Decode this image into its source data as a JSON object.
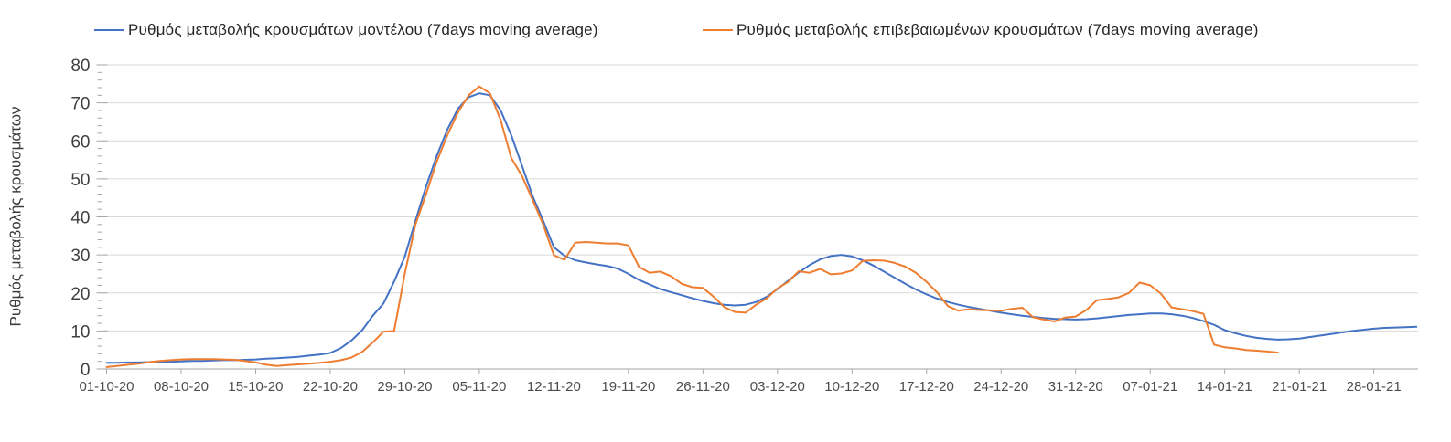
{
  "theme": {
    "background": "#ffffff",
    "gridline_color": "#d9d9d9",
    "axis_color": "#a6a6a6",
    "y_tick_text_color": "#404040",
    "x_tick_text_color": "#4d4d4d",
    "legend_text_color": "#262626"
  },
  "chart_data": {
    "type": "line",
    "title": "",
    "xlabel": "",
    "ylabel": "Ρυθμός μεταβολής κρουσμάτων",
    "ylim": [
      0,
      80
    ],
    "y_ticks": [
      0,
      10,
      20,
      30,
      40,
      50,
      60,
      70,
      80
    ],
    "y_minor_tick_step": 2,
    "grid": "horizontal-major",
    "legend_position": "top",
    "x_unit": "daily points, day 0 = 01-10-20",
    "x_tick_days": [
      0,
      7,
      14,
      21,
      28,
      35,
      42,
      49,
      56,
      63,
      70,
      77,
      84,
      91,
      98,
      105,
      112,
      119
    ],
    "x_tick_labels": [
      "01-10-20",
      "08-10-20",
      "15-10-20",
      "22-10-20",
      "29-10-20",
      "05-11-20",
      "12-11-20",
      "19-11-20",
      "26-11-20",
      "03-12-20",
      "10-12-20",
      "17-12-20",
      "24-12-20",
      "31-12-20",
      "07-01-21",
      "14-01-21",
      "21-01-21",
      "28-01-21"
    ],
    "series": [
      {
        "name": "Ρυθμός μεταβολής κρουσμάτων μοντέλου (7days moving average)",
        "color": "#4472C4",
        "start_day": 0,
        "values": [
          1.6,
          1.6,
          1.7,
          1.7,
          1.8,
          1.9,
          1.9,
          2.0,
          2.1,
          2.1,
          2.2,
          2.3,
          2.3,
          2.4,
          2.5,
          2.7,
          2.8,
          3.0,
          3.2,
          3.5,
          3.8,
          4.2,
          5.5,
          7.5,
          10.2,
          14.0,
          17.2,
          23.0,
          29.5,
          39.0,
          48.0,
          56.0,
          63.0,
          68.5,
          71.5,
          72.5,
          72.0,
          68.0,
          61.5,
          53.5,
          45.5,
          39.0,
          32.0,
          29.8,
          28.6,
          28.0,
          27.5,
          27.1,
          26.4,
          25.0,
          23.4,
          22.2,
          21.0,
          20.2,
          19.4,
          18.6,
          17.9,
          17.3,
          16.9,
          16.7,
          16.9,
          17.6,
          19.0,
          21.0,
          23.2,
          25.4,
          27.3,
          28.8,
          29.7,
          30.0,
          29.6,
          28.6,
          27.2,
          25.6,
          24.0,
          22.4,
          20.9,
          19.6,
          18.5,
          17.6,
          16.9,
          16.3,
          15.8,
          15.3,
          14.8,
          14.4,
          14.0,
          13.7,
          13.4,
          13.2,
          13.1,
          13.0,
          13.1,
          13.3,
          13.6,
          13.9,
          14.2,
          14.4,
          14.6,
          14.6,
          14.4,
          14.0,
          13.4,
          12.6,
          11.6,
          10.2,
          9.4,
          8.7,
          8.2,
          7.9,
          7.7,
          7.8,
          8.0,
          8.4,
          8.8,
          9.2,
          9.6,
          10.0,
          10.3,
          10.6,
          10.8,
          10.9,
          11.0,
          11.1
        ]
      },
      {
        "name": "Ρυθμός μεταβολής επιβεβαιωμένων κρουσμάτων (7days moving average)",
        "color": "#ED7D31",
        "start_day": 0,
        "values": [
          0.5,
          0.8,
          1.1,
          1.4,
          1.8,
          2.1,
          2.3,
          2.5,
          2.6,
          2.6,
          2.6,
          2.5,
          2.4,
          2.1,
          1.7,
          1.1,
          0.8,
          1.0,
          1.2,
          1.4,
          1.6,
          1.9,
          2.3,
          3.0,
          4.5,
          7.0,
          9.8,
          10.0,
          25.0,
          38.0,
          46.0,
          54.5,
          61.5,
          67.5,
          72.0,
          74.3,
          72.5,
          65.5,
          55.5,
          50.8,
          44.5,
          38.0,
          29.9,
          28.7,
          33.2,
          33.4,
          33.2,
          33.0,
          33.0,
          32.5,
          26.8,
          25.3,
          25.6,
          24.4,
          22.4,
          21.5,
          21.3,
          19.0,
          16.3,
          15.0,
          14.8,
          16.9,
          18.6,
          21.2,
          22.9,
          25.7,
          25.3,
          26.3,
          24.9,
          25.1,
          25.9,
          28.4,
          28.6,
          28.5,
          27.9,
          26.9,
          25.3,
          22.9,
          20.1,
          16.5,
          15.3,
          15.7,
          15.5,
          15.4,
          15.3,
          15.8,
          16.1,
          13.6,
          13.0,
          12.5,
          13.5,
          13.8,
          15.5,
          18.1,
          18.4,
          18.8,
          20.0,
          22.7,
          22.0,
          19.8,
          16.2,
          15.7,
          15.2,
          14.5,
          6.4,
          5.7,
          5.4,
          5.0,
          4.8,
          4.6,
          4.3
        ]
      }
    ]
  }
}
